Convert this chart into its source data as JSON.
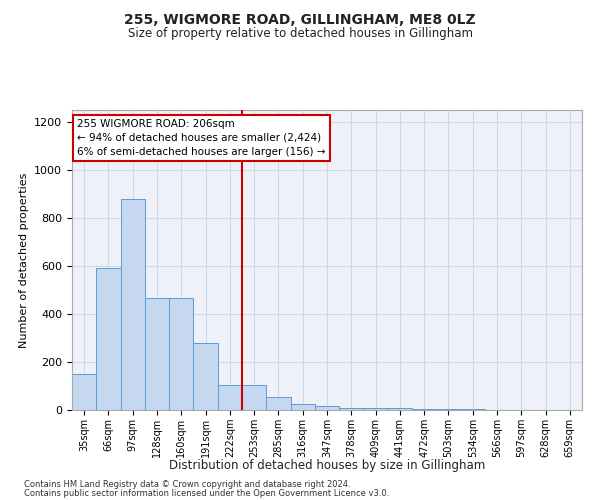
{
  "title1": "255, WIGMORE ROAD, GILLINGHAM, ME8 0LZ",
  "title2": "Size of property relative to detached houses in Gillingham",
  "xlabel": "Distribution of detached houses by size in Gillingham",
  "ylabel": "Number of detached properties",
  "footnote1": "Contains HM Land Registry data © Crown copyright and database right 2024.",
  "footnote2": "Contains public sector information licensed under the Open Government Licence v3.0.",
  "bin_labels": [
    "35sqm",
    "66sqm",
    "97sqm",
    "128sqm",
    "160sqm",
    "191sqm",
    "222sqm",
    "253sqm",
    "285sqm",
    "316sqm",
    "347sqm",
    "378sqm",
    "409sqm",
    "441sqm",
    "472sqm",
    "503sqm",
    "534sqm",
    "566sqm",
    "597sqm",
    "628sqm",
    "659sqm"
  ],
  "bar_values": [
    150,
    590,
    880,
    465,
    465,
    280,
    105,
    105,
    55,
    25,
    18,
    10,
    10,
    8,
    5,
    3,
    3,
    2,
    1,
    1,
    0
  ],
  "bar_color": "#c5d8f0",
  "bar_edge_color": "#5b9bd5",
  "vline_x": 6.5,
  "vline_color": "#cc0000",
  "annotation_text": "255 WIGMORE ROAD: 206sqm\n← 94% of detached houses are smaller (2,424)\n6% of semi-detached houses are larger (156) →",
  "annotation_box_color": "#ffffff",
  "annotation_box_edge": "#cc0000",
  "ylim": [
    0,
    1250
  ],
  "yticks": [
    0,
    200,
    400,
    600,
    800,
    1000,
    1200
  ],
  "grid_color": "#d0d8e8",
  "bg_color": "#eef2f8"
}
